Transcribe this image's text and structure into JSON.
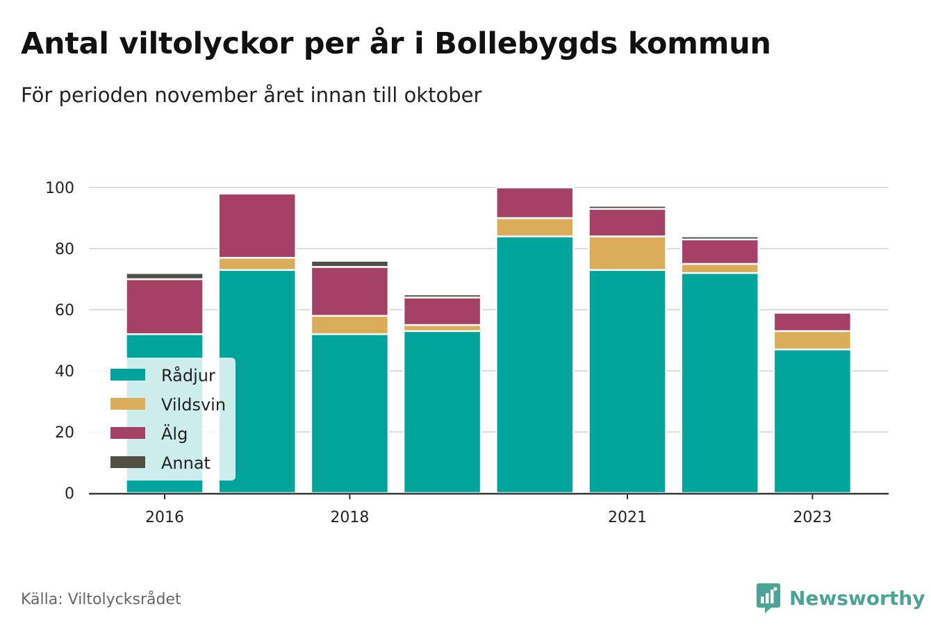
{
  "header": {
    "title": "Antal viltolyckor per år i Bollebygds kommun",
    "subtitle": "För perioden november året innan till oktober"
  },
  "footer": {
    "source": "Källa: Viltolycksrådet",
    "brand": "Newsworthy",
    "brand_icon": "newsworthy-logo-icon"
  },
  "chart_data": {
    "type": "bar",
    "stacked": true,
    "categories": [
      "2016",
      "2017",
      "2018",
      "2019",
      "2020",
      "2021",
      "2022",
      "2023"
    ],
    "x_tick_labels": [
      "2016",
      "2018",
      "2021",
      "2023"
    ],
    "series": [
      {
        "name": "Rådjur",
        "color": "#00a49a",
        "values": [
          52,
          73,
          52,
          53,
          84,
          73,
          72,
          47
        ]
      },
      {
        "name": "Vildsvin",
        "color": "#dbac5a",
        "values": [
          0,
          4,
          6,
          2,
          6,
          11,
          3,
          6
        ]
      },
      {
        "name": "Älg",
        "color": "#a64166",
        "values": [
          18,
          21,
          16,
          9,
          10,
          9,
          8,
          6
        ]
      },
      {
        "name": "Annat",
        "color": "#4f4f43",
        "values": [
          2,
          0,
          2,
          1,
          0,
          1,
          1,
          0
        ]
      }
    ],
    "ylim": [
      0,
      100
    ],
    "yticks": [
      0,
      20,
      40,
      60,
      80,
      100
    ],
    "grid": true,
    "legend": "bottom-left"
  }
}
